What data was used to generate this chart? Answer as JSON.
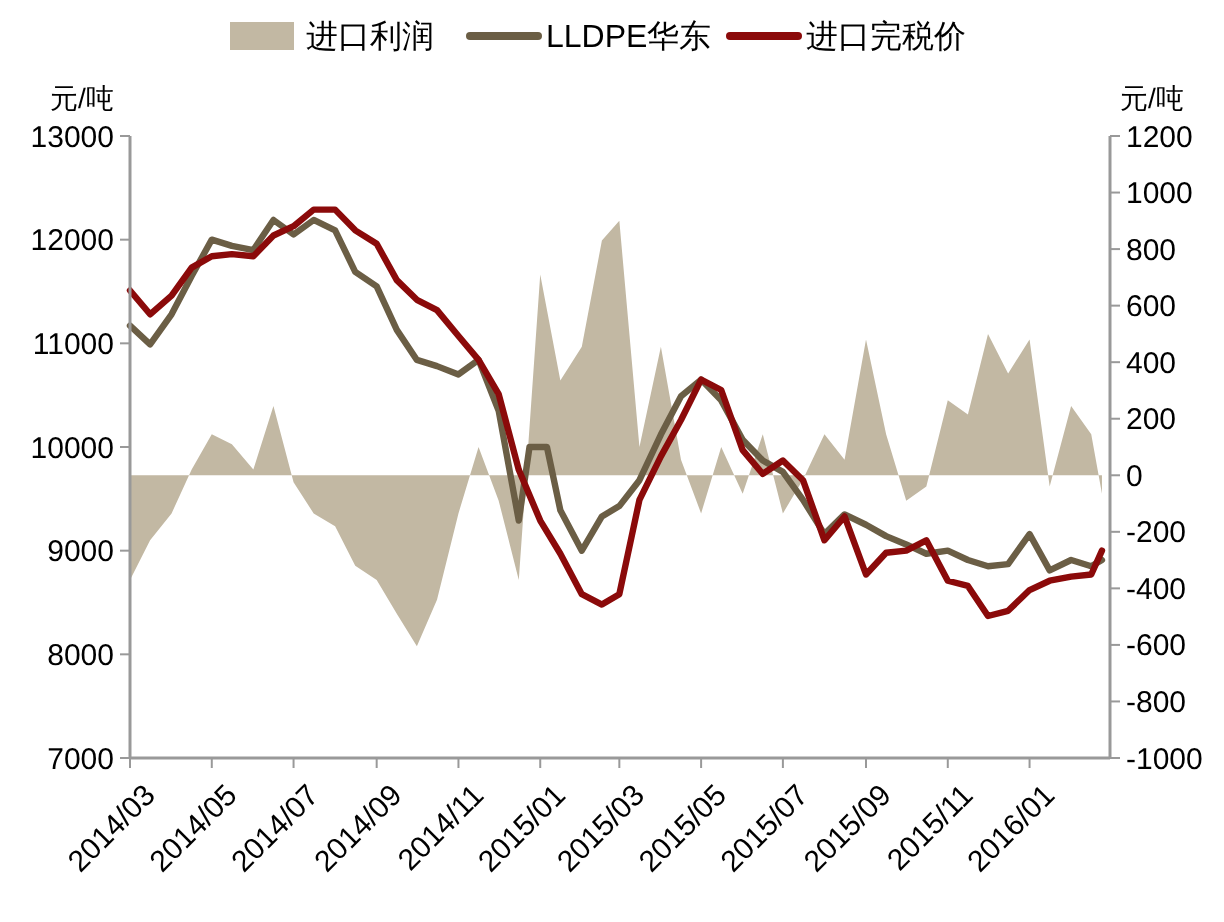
{
  "chart_data": {
    "type": "line",
    "x": [
      "2014-03-01",
      "2014-03-16",
      "2014-04-01",
      "2014-04-16",
      "2014-05-01",
      "2014-05-16",
      "2014-06-01",
      "2014-06-16",
      "2014-07-01",
      "2014-07-16",
      "2014-08-01",
      "2014-08-16",
      "2014-09-01",
      "2014-09-16",
      "2014-10-01",
      "2014-10-16",
      "2014-11-01",
      "2014-11-16",
      "2014-12-01",
      "2014-12-16",
      "2015-01-01",
      "2015-01-16",
      "2015-02-01",
      "2015-02-16",
      "2015-03-01",
      "2015-03-16",
      "2015-04-01",
      "2015-04-16",
      "2015-05-01",
      "2015-05-16",
      "2015-06-01",
      "2015-06-16",
      "2015-07-01",
      "2015-07-16",
      "2015-08-01",
      "2015-08-16",
      "2015-09-01",
      "2015-09-16",
      "2015-10-01",
      "2015-10-16",
      "2015-11-01",
      "2015-11-16",
      "2015-12-01",
      "2015-12-16",
      "2016-01-01",
      "2016-01-16",
      "2016-02-01",
      "2016-02-16",
      "2016-02-24"
    ],
    "series": [
      {
        "name": "进口利润",
        "type": "area",
        "axis": "y2",
        "color": "#c2b8a3",
        "values": [
          -370,
          -230,
          -135,
          20,
          145,
          110,
          20,
          245,
          -25,
          -135,
          -180,
          -320,
          -370,
          -490,
          -605,
          -440,
          -135,
          100,
          -90,
          -370,
          710,
          335,
          455,
          830,
          900,
          100,
          455,
          55,
          -135,
          100,
          -65,
          145,
          -135,
          -15,
          145,
          55,
          480,
          145,
          -90,
          -40,
          265,
          215,
          500,
          360,
          480,
          -40,
          245,
          145,
          -65
        ]
      },
      {
        "name": "LLDPE华东",
        "color": "#6b5e45",
        "x": [
          "2014-03-01",
          "2014-03-16",
          "2014-04-01",
          "2014-04-16",
          "2014-05-01",
          "2014-05-16",
          "2014-06-01",
          "2014-06-16",
          "2014-07-01",
          "2014-07-16",
          "2014-08-01",
          "2014-08-16",
          "2014-09-01",
          "2014-09-16",
          "2014-10-01",
          "2014-10-16",
          "2014-11-01",
          "2014-11-16",
          "2014-12-01",
          "2014-12-16",
          "2014-12-24",
          "2015-01-06",
          "2015-01-16",
          "2015-02-01",
          "2015-02-16",
          "2015-03-01",
          "2015-03-16",
          "2015-04-01",
          "2015-04-16",
          "2015-05-01",
          "2015-05-16",
          "2015-06-01",
          "2015-06-16",
          "2015-07-01",
          "2015-07-16",
          "2015-08-01",
          "2015-08-16",
          "2015-09-01",
          "2015-09-16",
          "2015-10-01",
          "2015-10-16",
          "2015-11-01",
          "2015-11-16",
          "2015-12-01",
          "2015-12-16",
          "2016-01-01",
          "2016-01-16",
          "2016-02-01",
          "2016-02-16",
          "2016-02-24"
        ],
        "values": [
          11170,
          10990,
          11280,
          11650,
          12000,
          11940,
          11900,
          12190,
          12050,
          12190,
          12090,
          11690,
          11550,
          11130,
          10840,
          10780,
          10700,
          10840,
          10350,
          9290,
          10000,
          10000,
          9390,
          9000,
          9330,
          9430,
          9680,
          10120,
          10490,
          10650,
          10450,
          10070,
          9870,
          9760,
          9490,
          9160,
          9350,
          9250,
          9140,
          9060,
          8970,
          9000,
          8910,
          8850,
          8870,
          9160,
          8810,
          8910,
          8850,
          8910
        ]
      },
      {
        "name": "进口完税价",
        "color": "#8b0a0a",
        "values": [
          11510,
          11280,
          11460,
          11730,
          11840,
          11860,
          11840,
          12040,
          12130,
          12290,
          12290,
          12090,
          11960,
          11610,
          11420,
          11320,
          11070,
          10840,
          10510,
          9780,
          9290,
          8970,
          8580,
          8480,
          8580,
          9490,
          9910,
          10260,
          10650,
          10550,
          9970,
          9740,
          9870,
          9680,
          9100,
          9330,
          8770,
          8980,
          9000,
          9100,
          8710,
          8660,
          8370,
          8420,
          8620,
          8710,
          8750,
          8770,
          9000
        ]
      }
    ],
    "xlim": [
      "2014-03-01",
      "2016-03-01"
    ],
    "xticks": [
      {
        "value": "2014-03-01",
        "label": "2014/03"
      },
      {
        "value": "2014-05-01",
        "label": "2014/05"
      },
      {
        "value": "2014-07-01",
        "label": "2014/07"
      },
      {
        "value": "2014-09-01",
        "label": "2014/09"
      },
      {
        "value": "2014-11-01",
        "label": "2014/11"
      },
      {
        "value": "2015-01-01",
        "label": "2015/01"
      },
      {
        "value": "2015-03-01",
        "label": "2015/03"
      },
      {
        "value": "2015-05-01",
        "label": "2015/05"
      },
      {
        "value": "2015-07-01",
        "label": "2015/07"
      },
      {
        "value": "2015-09-01",
        "label": "2015/09"
      },
      {
        "value": "2015-11-01",
        "label": "2015/11"
      },
      {
        "value": "2016-01-01",
        "label": "2016/01"
      }
    ],
    "ylabel": "元/吨",
    "y2label": "元/吨",
    "ylim": [
      7000,
      13000
    ],
    "yticks": [
      7000,
      8000,
      9000,
      10000,
      11000,
      12000,
      13000
    ],
    "y2lim": [
      -1000,
      1200
    ],
    "y2ticks": [
      -1000,
      -800,
      -600,
      -400,
      -200,
      0,
      200,
      400,
      600,
      800,
      1000,
      1200
    ],
    "legend": "top",
    "grid": false,
    "line_style": "solid",
    "marker": "none"
  }
}
